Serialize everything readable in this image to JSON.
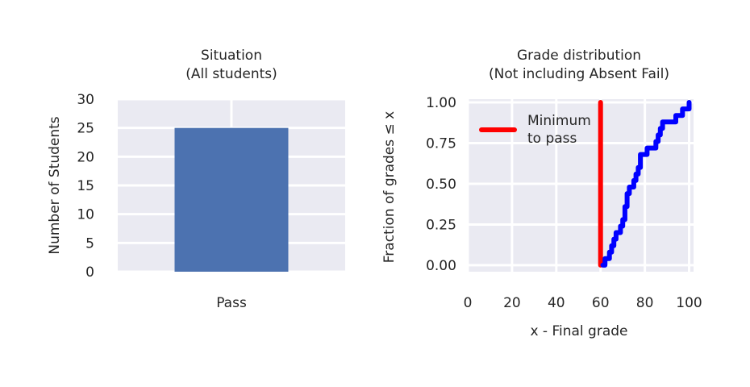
{
  "chart_data": [
    {
      "type": "bar",
      "title": "Situation",
      "subtitle": "(All students)",
      "ylabel": "Number of Students",
      "xlabel": "",
      "categories": [
        "Pass"
      ],
      "values": [
        25
      ],
      "ylim": [
        0,
        30
      ],
      "yticks": [
        "0",
        "5",
        "10",
        "15",
        "20",
        "25",
        "30"
      ],
      "grid": true,
      "color": "#4c72b0"
    },
    {
      "type": "line",
      "title": "Grade distribution",
      "subtitle": "(Not including Absent Fail)",
      "xlabel": "x - Final grade",
      "ylabel": "Fraction of grades ≤ x",
      "xlim": [
        0,
        102
      ],
      "ylim": [
        -0.04,
        1.02
      ],
      "xticks": [
        "0",
        "20",
        "40",
        "60",
        "80",
        "100"
      ],
      "yticks": [
        "0.00",
        "0.25",
        "0.50",
        "0.75",
        "1.00"
      ],
      "grid": true,
      "legend_position": "top-left",
      "series": [
        {
          "name": "Minimum to pass",
          "legend_lines": [
            "Minimum",
            "to pass"
          ],
          "color": "#ff0000",
          "x": [
            60,
            60
          ],
          "y": [
            0.0,
            1.0
          ]
        },
        {
          "name": "",
          "color": "#0000ff",
          "step": true,
          "x": [
            61,
            62,
            63,
            64,
            65,
            66,
            67,
            68,
            69,
            70,
            71,
            72,
            73,
            74,
            75,
            76,
            77,
            78,
            79,
            80,
            81,
            82,
            83,
            84,
            85,
            86,
            87,
            88,
            89,
            90,
            91,
            92,
            93,
            94,
            95,
            96,
            97,
            98,
            99,
            100
          ],
          "y": [
            0.0,
            0.04,
            0.04,
            0.08,
            0.12,
            0.16,
            0.2,
            0.2,
            0.24,
            0.28,
            0.36,
            0.44,
            0.48,
            0.48,
            0.52,
            0.56,
            0.6,
            0.68,
            0.68,
            0.68,
            0.72,
            0.72,
            0.72,
            0.72,
            0.76,
            0.8,
            0.84,
            0.88,
            0.88,
            0.88,
            0.88,
            0.88,
            0.88,
            0.92,
            0.92,
            0.92,
            0.96,
            0.96,
            0.96,
            1.0
          ]
        }
      ]
    }
  ]
}
